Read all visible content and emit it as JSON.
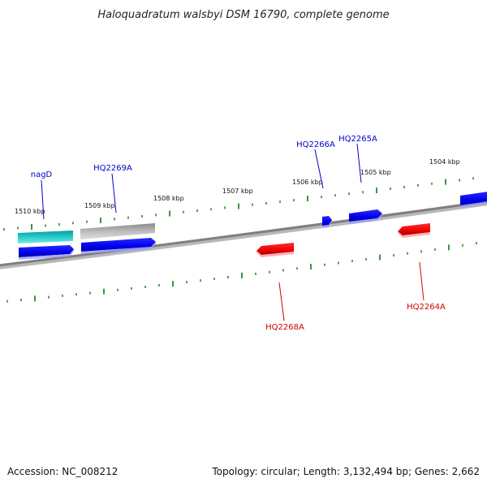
{
  "title": "Haloquadratum walsbyi DSM 16790, complete genome",
  "footer": {
    "accession": "Accession: NC_008212",
    "topology": "Topology: circular; Length: 3,132,494 bp; Genes: 2,662"
  },
  "colors": {
    "forward_label": "#0000cc",
    "reverse_label": "#cc0000",
    "tick": "#117711",
    "backbone": "#808080",
    "forward_gene": "#0000ee",
    "reverse_gene": "#ee0000",
    "rna_gene": "#11bbbb",
    "pseudo_gene": "#aaaaaa"
  },
  "scale_labels": [
    "1510 kbp",
    "1509 kbp",
    "1508 kbp",
    "1507 kbp",
    "1506 kbp",
    "1505 kbp",
    "1504 kbp"
  ],
  "gene_labels": {
    "nagD": "nagD",
    "HQ2269A": "HQ2269A",
    "HQ2266A": "HQ2266A",
    "HQ2265A": "HQ2265A",
    "HQ2268A": "HQ2268A",
    "HQ2264A": "HQ2264A"
  }
}
